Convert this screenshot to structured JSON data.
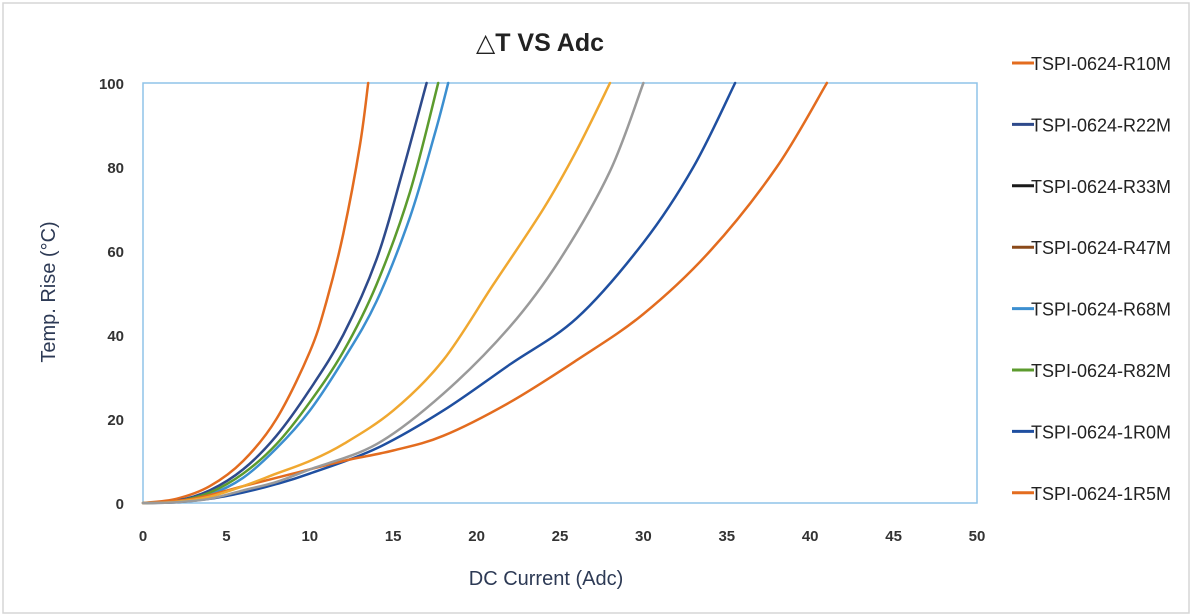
{
  "chart_data": {
    "type": "line",
    "title": "△T VS Adc",
    "xlabel": "DC Current (Adc)",
    "ylabel": "Temp. Rise (°C)",
    "xlim": [
      0,
      50
    ],
    "ylim": [
      0,
      100
    ],
    "x_ticks": [
      "0",
      "5",
      "10",
      "15",
      "20",
      "25",
      "30",
      "35",
      "40",
      "45",
      "50"
    ],
    "y_ticks": [
      "0",
      "20",
      "40",
      "60",
      "80",
      "100"
    ],
    "grid": false,
    "legend_position": "right",
    "series": [
      {
        "name": "TSPI-0624-R10M",
        "color": "#e36c1f",
        "points": [
          [
            0,
            0
          ],
          [
            2,
            1
          ],
          [
            4,
            4
          ],
          [
            6,
            10
          ],
          [
            8,
            20
          ],
          [
            10,
            36
          ],
          [
            11,
            48
          ],
          [
            12,
            64
          ],
          [
            13,
            85
          ],
          [
            13.5,
            100
          ]
        ]
      },
      {
        "name": "TSPI-0624-R22M",
        "color": "#2e4a8b",
        "points": [
          [
            0,
            0
          ],
          [
            2,
            0.5
          ],
          [
            4,
            3
          ],
          [
            6,
            8
          ],
          [
            8,
            16
          ],
          [
            10,
            27
          ],
          [
            12,
            40
          ],
          [
            14,
            58
          ],
          [
            15.5,
            78
          ],
          [
            17,
            100
          ]
        ]
      },
      {
        "name": "TSPI-0624-R33M",
        "color": "#1a1a1a",
        "points": []
      },
      {
        "name": "TSPI-0624-R47M",
        "color": "#8b4a1a",
        "points": []
      },
      {
        "name": "TSPI-0624-R68M",
        "color": "#3c8fd0",
        "points": [
          [
            0,
            0
          ],
          [
            2,
            0.4
          ],
          [
            4,
            2
          ],
          [
            6,
            6
          ],
          [
            8,
            13
          ],
          [
            10,
            22
          ],
          [
            12,
            34
          ],
          [
            14,
            48
          ],
          [
            16,
            68
          ],
          [
            17.5,
            88
          ],
          [
            18.3,
            100
          ]
        ]
      },
      {
        "name": "TSPI-0624-R82M",
        "color": "#5c9b2e",
        "points": [
          [
            0,
            0
          ],
          [
            2,
            0.4
          ],
          [
            4,
            2.5
          ],
          [
            6,
            7
          ],
          [
            8,
            14
          ],
          [
            10,
            24
          ],
          [
            12,
            36
          ],
          [
            14,
            52
          ],
          [
            16,
            74
          ],
          [
            17.7,
            100
          ]
        ]
      },
      {
        "name": "TSPI-0624-1R0M",
        "color": "#1f4fa0",
        "points": [
          [
            0,
            0
          ],
          [
            2,
            0.2
          ],
          [
            4,
            1
          ],
          [
            6,
            2.5
          ],
          [
            8,
            4.5
          ],
          [
            10,
            7
          ],
          [
            14,
            13
          ],
          [
            18,
            22
          ],
          [
            22,
            33
          ],
          [
            26,
            44
          ],
          [
            30,
            62
          ],
          [
            33,
            80
          ],
          [
            35.5,
            100
          ]
        ]
      },
      {
        "name": "TSPI-0624-1R5M",
        "color": "#e36c1f",
        "points": [
          [
            0,
            0
          ],
          [
            3,
            1
          ],
          [
            6,
            4
          ],
          [
            9,
            7
          ],
          [
            12,
            10
          ],
          [
            15,
            12.5
          ],
          [
            18,
            16
          ],
          [
            22,
            24
          ],
          [
            26,
            34
          ],
          [
            30,
            45
          ],
          [
            34,
            60
          ],
          [
            38,
            80
          ],
          [
            41,
            100
          ]
        ]
      },
      {
        "name": "",
        "color": "#f0a830",
        "points": [
          [
            0,
            0
          ],
          [
            2,
            0.3
          ],
          [
            4,
            1.5
          ],
          [
            6,
            4
          ],
          [
            8,
            7
          ],
          [
            10,
            10
          ],
          [
            12,
            14
          ],
          [
            15,
            22
          ],
          [
            18,
            34
          ],
          [
            21,
            52
          ],
          [
            24,
            70
          ],
          [
            26,
            84
          ],
          [
            28,
            100
          ]
        ]
      },
      {
        "name": "",
        "color": "#9a9a9a",
        "points": [
          [
            0,
            0
          ],
          [
            2,
            0.2
          ],
          [
            4,
            1
          ],
          [
            6,
            3
          ],
          [
            8,
            5
          ],
          [
            10,
            8
          ],
          [
            14,
            14
          ],
          [
            18,
            26
          ],
          [
            22,
            42
          ],
          [
            25,
            58
          ],
          [
            28,
            79
          ],
          [
            30,
            100
          ]
        ]
      }
    ]
  }
}
